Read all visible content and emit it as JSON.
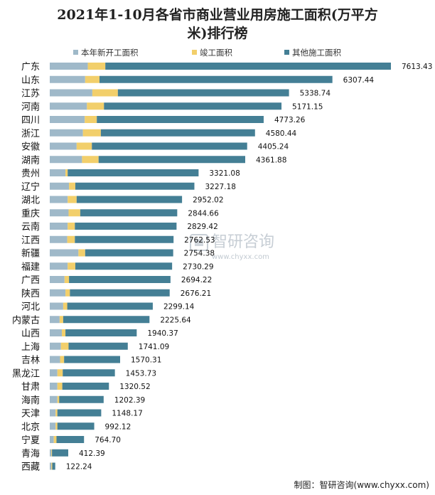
{
  "title_line1": "2021年1-10月各省市商业营业用房施工面积(万平方",
  "title_line2": "米)排行榜",
  "footer": "制图：智研咨询(www.chyxx.com)",
  "watermark": {
    "brand": "智研咨询",
    "url": "www.chyxx.com"
  },
  "colors": {
    "new_start": "#9fb9c9",
    "completed": "#f2cf6b",
    "other": "#447f95"
  },
  "chart_data": {
    "type": "bar",
    "orientation": "horizontal",
    "stacked": true,
    "unit": "万平方米",
    "legend": [
      "本年新开工面积",
      "竣工面积",
      "其他施工面积"
    ],
    "categories": [
      "广东",
      "山东",
      "江苏",
      "河南",
      "四川",
      "浙江",
      "安徽",
      "湖南",
      "贵州",
      "辽宁",
      "湖北",
      "重庆",
      "云南",
      "江西",
      "新疆",
      "福建",
      "广西",
      "陕西",
      "河北",
      "内蒙古",
      "山西",
      "上海",
      "吉林",
      "黑龙江",
      "甘肃",
      "海南",
      "天津",
      "北京",
      "宁夏",
      "青海",
      "西藏"
    ],
    "totals": [
      7613.43,
      6307.44,
      5338.74,
      5171.15,
      4773.26,
      4580.44,
      4405.24,
      4361.88,
      3321.08,
      3227.18,
      2952.02,
      2844.66,
      2829.42,
      2762.53,
      2754.38,
      2730.29,
      2694.22,
      2676.21,
      2299.14,
      2225.64,
      1940.37,
      1741.09,
      1570.31,
      1453.73,
      1320.52,
      1202.39,
      1148.17,
      992.12,
      764.7,
      412.39,
      122.24
    ],
    "series": [
      {
        "name": "本年新开工面积",
        "values": [
          850,
          790,
          950,
          830,
          780,
          740,
          600,
          720,
          350,
          430,
          400,
          420,
          400,
          390,
          640,
          400,
          330,
          350,
          300,
          220,
          270,
          250,
          230,
          170,
          170,
          170,
          130,
          130,
          90,
          35,
          35
        ]
      },
      {
        "name": "竣工面积",
        "values": [
          390,
          320,
          570,
          380,
          270,
          400,
          340,
          370,
          50,
          140,
          200,
          260,
          160,
          170,
          150,
          170,
          100,
          100,
          90,
          80,
          80,
          170,
          90,
          120,
          110,
          40,
          40,
          40,
          60,
          15,
          20
        ]
      },
      {
        "name": "其他施工面积",
        "values": [
          6373.43,
          5197.44,
          3818.74,
          3961.15,
          3723.26,
          3440.44,
          3465.24,
          3271.88,
          2921.08,
          2657.18,
          2352.02,
          2164.66,
          2269.42,
          2202.53,
          1964.38,
          2160.29,
          2264.22,
          2226.21,
          1909.14,
          1925.64,
          1590.37,
          1321.09,
          1250.31,
          1163.73,
          1040.52,
          992.39,
          978.17,
          822.12,
          614.7,
          362.39,
          67.24
        ]
      }
    ]
  }
}
